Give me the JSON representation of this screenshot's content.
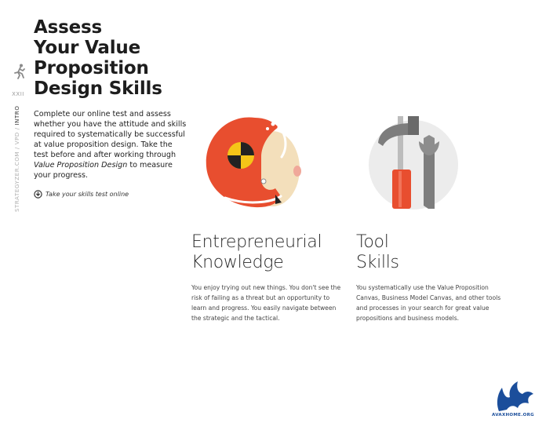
{
  "side": {
    "page_number": "XXII",
    "site": "STRATEGYZER.COM / VPD / ",
    "section": "INTRO"
  },
  "title": {
    "line1": "Assess",
    "line2": "Your Value",
    "line3": "Proposition",
    "line4": "Design Skills"
  },
  "intro": {
    "text_before": "Complete our online test and assess whether you have the attitude and skills required to systematically be successful at value proposition design. Take the test before and after working through ",
    "book_title": "Value Proposition Design",
    "text_after": " to measure your progress."
  },
  "cta": {
    "label": "Take your skills test online"
  },
  "columns": [
    {
      "heading_line1": "Entrepreneurial",
      "heading_line2": "Knowledge",
      "body": "You enjoy trying out new things. You don't see the risk of failing as a threat but an opportunity to learn and progress. You easily navigate between the strategic and the tactical."
    },
    {
      "heading_line1": "Tool",
      "heading_line2": "Skills",
      "body": "You systematically use the Value Proposition Canvas, Business Model Canvas, and other tools and processes in your search for great value propositions and business models."
    }
  ],
  "icons": {
    "running": "running-person-icon",
    "cta": "download-icon",
    "helmet": "crash-helmet-illustration",
    "tools": "hammer-wrench-illustration",
    "watermark": "dragon-logo"
  },
  "watermark": {
    "text": "AVAXHOME.ORG"
  },
  "colors": {
    "helmet_red": "#e84e2f",
    "skin": "#f3dfbb",
    "target_yellow": "#f5c518",
    "tool_bg": "#ececec",
    "handle_red": "#e84e2f",
    "metal": "#7d7d7d",
    "watermark_blue": "#1b4e9b"
  }
}
